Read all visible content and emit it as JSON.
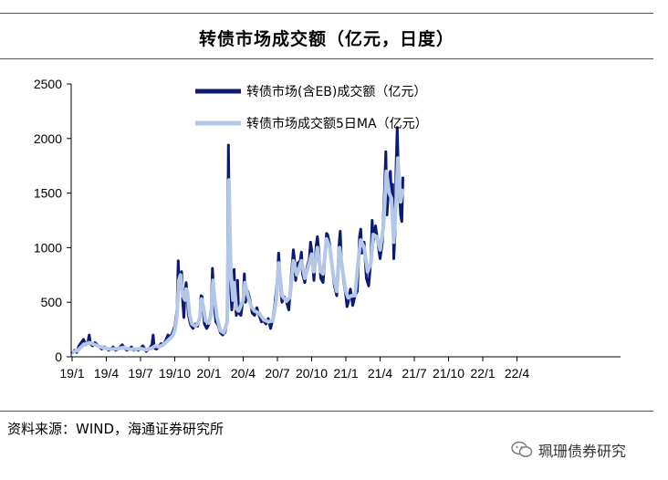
{
  "title": "转债市场成交额（亿元，日度）",
  "source": "资料来源：WIND，海通证券研究所",
  "watermark": "珮珊债券研究",
  "chart_data": {
    "type": "line",
    "title": "转债市场成交额（亿元，日度）",
    "xlabel": "",
    "ylabel": "",
    "ylim": [
      0,
      2500
    ],
    "yticks": [
      "0",
      "500",
      "1000",
      "1500",
      "2000",
      "2500"
    ],
    "xticks": [
      "19/1",
      "19/4",
      "19/7",
      "19/10",
      "20/1",
      "20/4",
      "20/7",
      "20/10",
      "21/1",
      "21/4",
      "21/7",
      "21/10",
      "22/1",
      "22/4"
    ],
    "grid": false,
    "legend_position": "top-right",
    "series": [
      {
        "name": "转债市场(含EB)成交额（亿元）",
        "color": "#0c1a73",
        "points": [
          [
            0.0,
            30
          ],
          [
            0.2,
            60
          ],
          [
            0.4,
            40
          ],
          [
            0.6,
            100
          ],
          [
            0.8,
            130
          ],
          [
            1.0,
            160
          ],
          [
            1.2,
            110
          ],
          [
            1.4,
            140
          ],
          [
            1.5,
            200
          ],
          [
            1.6,
            120
          ],
          [
            1.8,
            100
          ],
          [
            2.0,
            130
          ],
          [
            2.2,
            110
          ],
          [
            2.4,
            90
          ],
          [
            2.6,
            70
          ],
          [
            2.8,
            90
          ],
          [
            3.0,
            80
          ],
          [
            3.2,
            60
          ],
          [
            3.4,
            70
          ],
          [
            3.6,
            90
          ],
          [
            3.8,
            60
          ],
          [
            4.0,
            70
          ],
          [
            4.2,
            90
          ],
          [
            4.4,
            110
          ],
          [
            4.6,
            80
          ],
          [
            4.8,
            60
          ],
          [
            5.0,
            70
          ],
          [
            5.2,
            90
          ],
          [
            5.4,
            60
          ],
          [
            5.6,
            70
          ],
          [
            5.8,
            60
          ],
          [
            6.0,
            80
          ],
          [
            6.2,
            100
          ],
          [
            6.4,
            70
          ],
          [
            6.5,
            50
          ],
          [
            6.6,
            60
          ],
          [
            6.8,
            80
          ],
          [
            7.0,
            110
          ],
          [
            7.1,
            200
          ],
          [
            7.2,
            80
          ],
          [
            7.4,
            70
          ],
          [
            7.6,
            90
          ],
          [
            7.8,
            120
          ],
          [
            8.0,
            110
          ],
          [
            8.2,
            150
          ],
          [
            8.4,
            200
          ],
          [
            8.6,
            180
          ],
          [
            8.8,
            220
          ],
          [
            9.0,
            280
          ],
          [
            9.2,
            430
          ],
          [
            9.3,
            880
          ],
          [
            9.4,
            620
          ],
          [
            9.5,
            730
          ],
          [
            9.6,
            780
          ],
          [
            9.7,
            500
          ],
          [
            9.8,
            360
          ],
          [
            9.9,
            600
          ],
          [
            10.0,
            680
          ],
          [
            10.1,
            520
          ],
          [
            10.2,
            380
          ],
          [
            10.3,
            330
          ],
          [
            10.4,
            290
          ],
          [
            10.6,
            260
          ],
          [
            10.8,
            300
          ],
          [
            11.0,
            280
          ],
          [
            11.2,
            360
          ],
          [
            11.3,
            560
          ],
          [
            11.4,
            550
          ],
          [
            11.5,
            420
          ],
          [
            11.6,
            300
          ],
          [
            11.8,
            260
          ],
          [
            12.0,
            300
          ],
          [
            12.2,
            440
          ],
          [
            12.3,
            810
          ],
          [
            12.4,
            600
          ],
          [
            12.5,
            430
          ],
          [
            12.6,
            320
          ],
          [
            12.8,
            290
          ],
          [
            13.0,
            220
          ],
          [
            13.2,
            200
          ],
          [
            13.4,
            220
          ],
          [
            13.6,
            330
          ],
          [
            13.7,
            1940
          ],
          [
            13.8,
            1100
          ],
          [
            13.9,
            620
          ],
          [
            14.0,
            430
          ],
          [
            14.1,
            600
          ],
          [
            14.2,
            800
          ],
          [
            14.3,
            500
          ],
          [
            14.4,
            380
          ],
          [
            14.5,
            700
          ],
          [
            14.6,
            400
          ],
          [
            14.8,
            380
          ],
          [
            15.0,
            540
          ],
          [
            15.1,
            760
          ],
          [
            15.2,
            500
          ],
          [
            15.4,
            600
          ],
          [
            15.6,
            520
          ],
          [
            15.8,
            400
          ],
          [
            16.0,
            380
          ],
          [
            16.2,
            450
          ],
          [
            16.4,
            380
          ],
          [
            16.6,
            320
          ],
          [
            16.8,
            330
          ],
          [
            17.0,
            300
          ],
          [
            17.2,
            350
          ],
          [
            17.4,
            260
          ],
          [
            17.6,
            350
          ],
          [
            17.8,
            500
          ],
          [
            18.0,
            720
          ],
          [
            18.1,
            950
          ],
          [
            18.2,
            780
          ],
          [
            18.3,
            600
          ],
          [
            18.4,
            500
          ],
          [
            18.6,
            550
          ],
          [
            18.8,
            500
          ],
          [
            19.0,
            430
          ],
          [
            19.1,
            580
          ],
          [
            19.2,
            720
          ],
          [
            19.4,
            980
          ],
          [
            19.5,
            880
          ],
          [
            19.6,
            700
          ],
          [
            19.8,
            860
          ],
          [
            20.0,
            880
          ],
          [
            20.1,
            960
          ],
          [
            20.2,
            760
          ],
          [
            20.4,
            680
          ],
          [
            20.6,
            820
          ],
          [
            20.8,
            900
          ],
          [
            20.9,
            1050
          ],
          [
            21.0,
            980
          ],
          [
            21.2,
            700
          ],
          [
            21.4,
            1020
          ],
          [
            21.5,
            1100
          ],
          [
            21.6,
            1000
          ],
          [
            21.8,
            720
          ],
          [
            22.0,
            680
          ],
          [
            22.2,
            960
          ],
          [
            22.3,
            1130
          ],
          [
            22.4,
            1120
          ],
          [
            22.6,
            1020
          ],
          [
            22.8,
            800
          ],
          [
            23.0,
            650
          ],
          [
            23.2,
            560
          ],
          [
            23.4,
            1020
          ],
          [
            23.5,
            1150
          ],
          [
            23.6,
            900
          ],
          [
            23.8,
            700
          ],
          [
            24.0,
            560
          ],
          [
            24.1,
            460
          ],
          [
            24.2,
            500
          ],
          [
            24.4,
            620
          ],
          [
            24.6,
            470
          ],
          [
            24.8,
            560
          ],
          [
            25.0,
            600
          ],
          [
            25.2,
            1100
          ],
          [
            25.3,
            1170
          ],
          [
            25.4,
            950
          ],
          [
            25.6,
            1050
          ],
          [
            25.8,
            720
          ],
          [
            26.0,
            650
          ],
          [
            26.2,
            900
          ],
          [
            26.3,
            1250
          ],
          [
            26.4,
            1050
          ],
          [
            26.6,
            1200
          ],
          [
            26.8,
            1050
          ],
          [
            27.0,
            900
          ],
          [
            27.2,
            1050
          ],
          [
            27.4,
            1560
          ],
          [
            27.5,
            1880
          ],
          [
            27.6,
            1300
          ],
          [
            27.8,
            1620
          ],
          [
            27.9,
            1700
          ],
          [
            28.0,
            1400
          ],
          [
            28.1,
            1580
          ],
          [
            28.2,
            900
          ],
          [
            28.3,
            1120
          ],
          [
            28.4,
            1720
          ],
          [
            28.5,
            2100
          ],
          [
            28.6,
            1700
          ],
          [
            28.8,
            1300
          ],
          [
            28.9,
            1240
          ],
          [
            29.0,
            1650
          ]
        ]
      },
      {
        "name": "转债市场成交额5日MA（亿元）",
        "color": "#b4c7e7",
        "points": [
          [
            0.0,
            40
          ],
          [
            0.5,
            60
          ],
          [
            1.0,
            110
          ],
          [
            1.5,
            130
          ],
          [
            2.0,
            110
          ],
          [
            2.5,
            90
          ],
          [
            3.0,
            75
          ],
          [
            3.5,
            70
          ],
          [
            4.0,
            75
          ],
          [
            4.5,
            85
          ],
          [
            5.0,
            70
          ],
          [
            5.5,
            70
          ],
          [
            6.0,
            75
          ],
          [
            6.5,
            65
          ],
          [
            7.0,
            80
          ],
          [
            7.3,
            100
          ],
          [
            7.6,
            90
          ],
          [
            8.0,
            110
          ],
          [
            8.4,
            150
          ],
          [
            8.8,
            190
          ],
          [
            9.0,
            240
          ],
          [
            9.2,
            380
          ],
          [
            9.35,
            700
          ],
          [
            9.5,
            750
          ],
          [
            9.7,
            560
          ],
          [
            9.9,
            520
          ],
          [
            10.0,
            620
          ],
          [
            10.1,
            600
          ],
          [
            10.3,
            380
          ],
          [
            10.5,
            300
          ],
          [
            10.8,
            280
          ],
          [
            11.0,
            300
          ],
          [
            11.2,
            360
          ],
          [
            11.35,
            530
          ],
          [
            11.5,
            460
          ],
          [
            11.7,
            330
          ],
          [
            12.0,
            310
          ],
          [
            12.2,
            400
          ],
          [
            12.35,
            700
          ],
          [
            12.5,
            520
          ],
          [
            12.7,
            360
          ],
          [
            13.0,
            240
          ],
          [
            13.3,
            220
          ],
          [
            13.6,
            320
          ],
          [
            13.75,
            1620
          ],
          [
            13.9,
            800
          ],
          [
            14.1,
            520
          ],
          [
            14.2,
            680
          ],
          [
            14.4,
            440
          ],
          [
            14.6,
            420
          ],
          [
            15.0,
            520
          ],
          [
            15.15,
            680
          ],
          [
            15.4,
            560
          ],
          [
            15.7,
            460
          ],
          [
            16.0,
            420
          ],
          [
            16.4,
            400
          ],
          [
            16.8,
            340
          ],
          [
            17.2,
            320
          ],
          [
            17.6,
            330
          ],
          [
            17.9,
            520
          ],
          [
            18.1,
            860
          ],
          [
            18.4,
            560
          ],
          [
            18.8,
            510
          ],
          [
            19.1,
            550
          ],
          [
            19.4,
            880
          ],
          [
            19.7,
            750
          ],
          [
            20.1,
            880
          ],
          [
            20.4,
            720
          ],
          [
            20.8,
            860
          ],
          [
            21.0,
            940
          ],
          [
            21.2,
            780
          ],
          [
            21.5,
            1000
          ],
          [
            21.8,
            780
          ],
          [
            22.0,
            760
          ],
          [
            22.3,
            1080
          ],
          [
            22.6,
            1000
          ],
          [
            22.9,
            740
          ],
          [
            23.2,
            600
          ],
          [
            23.45,
            1000
          ],
          [
            23.7,
            800
          ],
          [
            24.0,
            600
          ],
          [
            24.2,
            540
          ],
          [
            24.5,
            560
          ],
          [
            24.8,
            560
          ],
          [
            25.1,
            900
          ],
          [
            25.3,
            1070
          ],
          [
            25.6,
            1000
          ],
          [
            25.9,
            780
          ],
          [
            26.2,
            860
          ],
          [
            26.4,
            1120
          ],
          [
            26.7,
            1100
          ],
          [
            27.0,
            980
          ],
          [
            27.3,
            1200
          ],
          [
            27.55,
            1700
          ],
          [
            27.8,
            1500
          ],
          [
            28.0,
            1450
          ],
          [
            28.2,
            1050
          ],
          [
            28.4,
            1400
          ],
          [
            28.55,
            1820
          ],
          [
            28.8,
            1420
          ],
          [
            29.0,
            1540
          ]
        ]
      }
    ]
  }
}
